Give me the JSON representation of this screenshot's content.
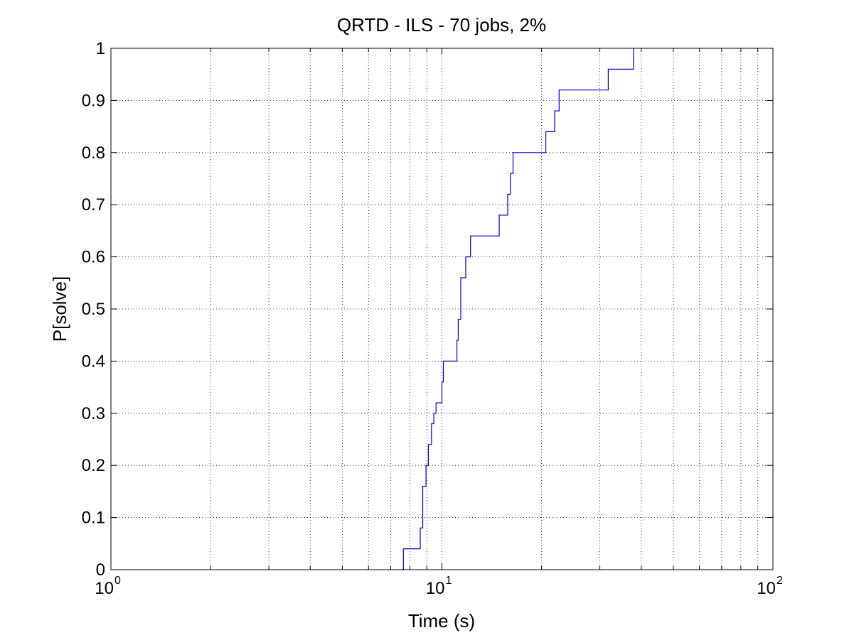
{
  "chart_data": {
    "type": "line",
    "title": "QRTD - ILS - 70 jobs, 2%",
    "xlabel": "Time (s)",
    "ylabel": "P[solve]",
    "x_scale": "log",
    "xlim": [
      1,
      100
    ],
    "ylim": [
      0,
      1
    ],
    "grid": true,
    "x_ticks": [
      {
        "base": "10",
        "exp": "0",
        "value": 1
      },
      {
        "base": "10",
        "exp": "1",
        "value": 10
      },
      {
        "base": "10",
        "exp": "2",
        "value": 100
      }
    ],
    "y_ticks": [
      "0",
      "0.1",
      "0.2",
      "0.3",
      "0.4",
      "0.5",
      "0.6",
      "0.7",
      "0.8",
      "0.9",
      "1"
    ],
    "line_color": "#0000cc",
    "series": [
      {
        "step": "post",
        "x": [
          7.55,
          7.65,
          8.15,
          8.6,
          8.75,
          8.95,
          9.1,
          9.3,
          9.45,
          9.6,
          10.0,
          10.1,
          11.1,
          11.2,
          11.4,
          11.6,
          11.8,
          12.2,
          14.9,
          15.8,
          16.1,
          16.4,
          20.6,
          21.5,
          21.9,
          22.6,
          31.8,
          33.1,
          37.9
        ],
        "y": [
          0.0,
          0.04,
          0.04,
          0.08,
          0.16,
          0.2,
          0.24,
          0.28,
          0.3,
          0.32,
          0.36,
          0.4,
          0.44,
          0.48,
          0.56,
          0.56,
          0.6,
          0.64,
          0.68,
          0.72,
          0.76,
          0.8,
          0.84,
          0.84,
          0.88,
          0.92,
          0.96,
          0.96,
          1.0
        ]
      }
    ]
  }
}
